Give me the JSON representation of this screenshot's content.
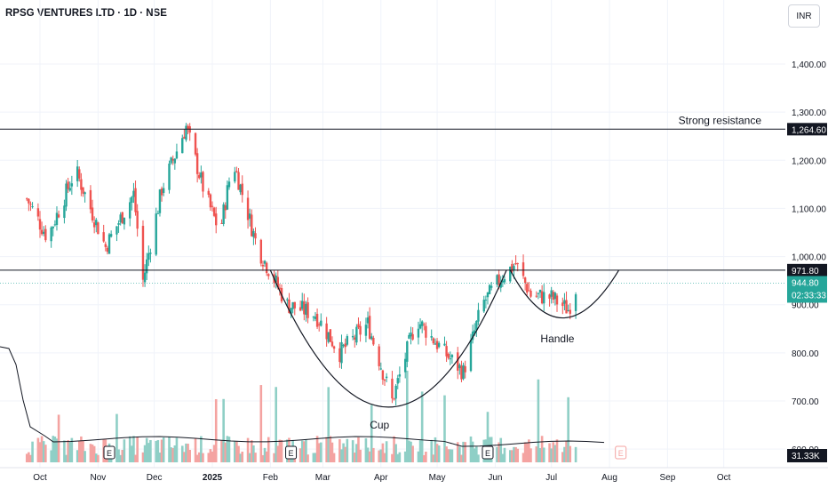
{
  "header": {
    "title": "RPSG VENTURES LTD · 1D · NSE",
    "currency": "INR"
  },
  "colors": {
    "up": "#26a69a",
    "down": "#ef5350",
    "vol_up": "#8fcfc6",
    "vol_down": "#f4a3a1",
    "level_line": "#131722",
    "price_line": "#26a69a",
    "price_tag": "#26a69a",
    "grid": "#f0f3fa"
  },
  "chart_data": {
    "type": "candlestick",
    "title": "RPSG VENTURES LTD · 1D · NSE",
    "x_axis_labels": [
      "Oct",
      "Nov",
      "Dec",
      "2025",
      "Feb",
      "Mar",
      "Apr",
      "May",
      "Jun",
      "Jul",
      "Aug",
      "Sep",
      "Oct"
    ],
    "y_axis_ticks": [
      "1,400.00",
      "1,300.00",
      "1,200.00",
      "1,100.00",
      "1,000.00",
      "900.00",
      "800.00",
      "700.00",
      "600.00"
    ],
    "y_range": [
      580,
      1520
    ],
    "levels": [
      {
        "name": "Strong resistance",
        "label": "1,264.60",
        "value": 1264.6
      },
      {
        "name": "",
        "label": "971.80",
        "value": 971.8
      }
    ],
    "last_price": {
      "label": "944.80",
      "value": 944.8,
      "countdown": "02:33:33"
    },
    "volume_label": "31.33K",
    "annotations": {
      "cup": "Cup",
      "handle": "Handle",
      "resistance": "Strong resistance"
    },
    "earnings_markers": [
      "E",
      "E",
      "E",
      "E"
    ],
    "close_series_keypoints": [
      [
        "2024-09-24",
        1120
      ],
      [
        "2024-10-05",
        1040
      ],
      [
        "2024-10-20",
        1180
      ],
      [
        "2024-11-05",
        1020
      ],
      [
        "2024-11-20",
        1130
      ],
      [
        "2024-11-25",
        950
      ],
      [
        "2024-12-05",
        1140
      ],
      [
        "2024-12-18",
        1270
      ],
      [
        "2024-12-28",
        1130
      ],
      [
        "2025-01-05",
        1050
      ],
      [
        "2025-01-12",
        1200
      ],
      [
        "2025-01-25",
        1020
      ],
      [
        "2025-02-10",
        900
      ],
      [
        "2025-02-25",
        880
      ],
      [
        "2025-03-10",
        800
      ],
      [
        "2025-03-25",
        860
      ],
      [
        "2025-04-07",
        700
      ],
      [
        "2025-04-20",
        870
      ],
      [
        "2025-05-05",
        800
      ],
      [
        "2025-05-15",
        760
      ],
      [
        "2025-05-25",
        900
      ],
      [
        "2025-06-05",
        960
      ],
      [
        "2025-06-12",
        985
      ],
      [
        "2025-06-20",
        920
      ],
      [
        "2025-07-01",
        915
      ],
      [
        "2025-07-10",
        890
      ],
      [
        "2025-07-15",
        945
      ]
    ]
  }
}
